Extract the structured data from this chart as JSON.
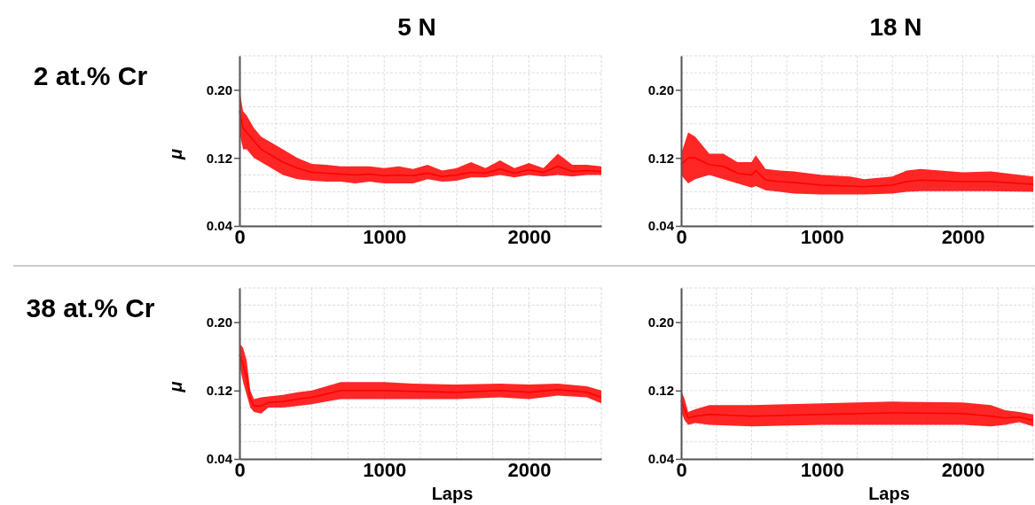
{
  "chart_data": [
    {
      "type": "line",
      "title": "5 N",
      "ylabel": "μ",
      "annotations": [
        "2 at.% Cr"
      ],
      "xlim": [
        0,
        2500
      ],
      "ylim": [
        0.04,
        0.24
      ],
      "xticks": [
        0,
        {
          "value": 250,
          "label": null
        },
        {
          "value": 500,
          "label": null
        },
        {
          "value": 750,
          "label": null
        },
        1000,
        {
          "value": 1250,
          "label": null
        },
        {
          "value": 1500,
          "label": null
        },
        {
          "value": 1750,
          "label": null
        },
        2000,
        {
          "value": 2250,
          "label": null
        }
      ],
      "yticks": [
        "0.04",
        {
          "value": 0.06,
          "label": null
        },
        {
          "value": 0.08,
          "label": null
        },
        {
          "value": 0.1,
          "label": null
        },
        {
          "value": 0.12,
          "label": "0.12"
        },
        {
          "value": 0.14,
          "label": null
        },
        {
          "value": 0.16,
          "label": null
        },
        {
          "value": 0.18,
          "label": null
        },
        {
          "value": 0.2,
          "label": "0.20"
        },
        {
          "value": 0.22,
          "label": null
        }
      ],
      "grid": true,
      "marker": "none",
      "series": [
        {
          "color": "#ff0000",
          "x": [
            0,
            25,
            50,
            100,
            150,
            200,
            300,
            400,
            500,
            600,
            700,
            800,
            900,
            1000,
            1100,
            1200,
            1300,
            1400,
            1500,
            1600,
            1700,
            1800,
            1900,
            2000,
            2100,
            2200,
            2300,
            2400,
            2500
          ],
          "values": [
            0.175,
            0.155,
            0.15,
            0.14,
            0.13,
            0.125,
            0.115,
            0.108,
            0.103,
            0.102,
            0.101,
            0.1,
            0.101,
            0.099,
            0.1,
            0.099,
            0.102,
            0.098,
            0.1,
            0.103,
            0.102,
            0.107,
            0.102,
            0.106,
            0.103,
            0.11,
            0.104,
            0.105,
            0.104
          ],
          "lower": [
            0.15,
            0.13,
            0.13,
            0.12,
            0.115,
            0.11,
            0.1,
            0.095,
            0.093,
            0.092,
            0.092,
            0.09,
            0.092,
            0.09,
            0.09,
            0.09,
            0.095,
            0.092,
            0.093,
            0.097,
            0.097,
            0.1,
            0.097,
            0.1,
            0.098,
            0.1,
            0.098,
            0.1,
            0.1
          ],
          "upper": [
            0.2,
            0.175,
            0.17,
            0.155,
            0.145,
            0.14,
            0.13,
            0.12,
            0.113,
            0.112,
            0.11,
            0.11,
            0.11,
            0.108,
            0.11,
            0.107,
            0.112,
            0.105,
            0.108,
            0.115,
            0.108,
            0.117,
            0.108,
            0.114,
            0.108,
            0.125,
            0.112,
            0.112,
            0.11
          ]
        }
      ]
    },
    {
      "type": "line",
      "title": "18 N",
      "xlim": [
        0,
        2500
      ],
      "ylim": [
        0.04,
        0.24
      ],
      "xticks": [
        0,
        {
          "value": 250,
          "label": null
        },
        {
          "value": 500,
          "label": null
        },
        {
          "value": 750,
          "label": null
        },
        1000,
        {
          "value": 1250,
          "label": null
        },
        {
          "value": 1500,
          "label": null
        },
        {
          "value": 1750,
          "label": null
        },
        2000,
        {
          "value": 2250,
          "label": null
        }
      ],
      "yticks": [
        "0.04",
        {
          "value": 0.06,
          "label": null
        },
        {
          "value": 0.08,
          "label": null
        },
        {
          "value": 0.1,
          "label": null
        },
        {
          "value": 0.12,
          "label": "0.12"
        },
        {
          "value": 0.14,
          "label": null
        },
        {
          "value": 0.16,
          "label": null
        },
        {
          "value": 0.18,
          "label": null
        },
        {
          "value": 0.2,
          "label": "0.20"
        },
        {
          "value": 0.22,
          "label": null
        }
      ],
      "grid": true,
      "marker": "none",
      "series": [
        {
          "color": "#ff0000",
          "x": [
            0,
            50,
            100,
            200,
            300,
            400,
            500,
            530,
            600,
            700,
            800,
            1000,
            1200,
            1300,
            1500,
            1600,
            1700,
            2000,
            2200,
            2500
          ],
          "values": [
            0.112,
            0.12,
            0.12,
            0.112,
            0.11,
            0.102,
            0.1,
            0.105,
            0.094,
            0.092,
            0.091,
            0.088,
            0.087,
            0.086,
            0.088,
            0.092,
            0.094,
            0.092,
            0.092,
            0.089
          ],
          "lower": [
            0.1,
            0.09,
            0.095,
            0.1,
            0.095,
            0.09,
            0.085,
            0.087,
            0.082,
            0.08,
            0.078,
            0.077,
            0.077,
            0.077,
            0.078,
            0.08,
            0.081,
            0.081,
            0.081,
            0.08
          ],
          "upper": [
            0.125,
            0.15,
            0.145,
            0.125,
            0.125,
            0.115,
            0.115,
            0.123,
            0.107,
            0.105,
            0.104,
            0.1,
            0.098,
            0.095,
            0.098,
            0.105,
            0.107,
            0.103,
            0.104,
            0.098
          ]
        }
      ]
    },
    {
      "type": "line",
      "xlabel": "Laps",
      "ylabel": "μ",
      "annotations": [
        "38 at.% Cr"
      ],
      "xlim": [
        0,
        2500
      ],
      "ylim": [
        0.04,
        0.24
      ],
      "xticks": [
        0,
        {
          "value": 250,
          "label": null
        },
        {
          "value": 500,
          "label": null
        },
        {
          "value": 750,
          "label": null
        },
        1000,
        {
          "value": 1250,
          "label": null
        },
        {
          "value": 1500,
          "label": null
        },
        {
          "value": 1750,
          "label": null
        },
        2000,
        {
          "value": 2250,
          "label": null
        }
      ],
      "yticks": [
        "0.04",
        {
          "value": 0.06,
          "label": null
        },
        {
          "value": 0.08,
          "label": null
        },
        {
          "value": 0.1,
          "label": null
        },
        {
          "value": 0.12,
          "label": "0.12"
        },
        {
          "value": 0.14,
          "label": null
        },
        {
          "value": 0.16,
          "label": null
        },
        {
          "value": 0.18,
          "label": null
        },
        {
          "value": 0.2,
          "label": "0.20"
        },
        {
          "value": 0.22,
          "label": null
        }
      ],
      "grid": true,
      "marker": "none",
      "series": [
        {
          "color": "#ff0000",
          "x": [
            0,
            25,
            50,
            75,
            100,
            150,
            200,
            300,
            400,
            500,
            600,
            700,
            800,
            1000,
            1200,
            1500,
            1800,
            2000,
            2200,
            2400,
            2500
          ],
          "values": [
            0.162,
            0.15,
            0.135,
            0.11,
            0.102,
            0.102,
            0.106,
            0.107,
            0.11,
            0.112,
            0.116,
            0.12,
            0.12,
            0.12,
            0.119,
            0.118,
            0.12,
            0.118,
            0.121,
            0.118,
            0.112
          ],
          "lower": [
            0.15,
            0.13,
            0.115,
            0.1,
            0.095,
            0.093,
            0.1,
            0.1,
            0.102,
            0.104,
            0.107,
            0.11,
            0.11,
            0.11,
            0.11,
            0.11,
            0.112,
            0.11,
            0.114,
            0.112,
            0.105
          ],
          "upper": [
            0.175,
            0.17,
            0.155,
            0.12,
            0.11,
            0.112,
            0.113,
            0.115,
            0.118,
            0.12,
            0.125,
            0.13,
            0.13,
            0.13,
            0.128,
            0.127,
            0.128,
            0.127,
            0.128,
            0.125,
            0.12
          ]
        }
      ]
    },
    {
      "type": "line",
      "xlabel": "Laps",
      "xlim": [
        0,
        2500
      ],
      "ylim": [
        0.04,
        0.24
      ],
      "xticks": [
        0,
        {
          "value": 250,
          "label": null
        },
        {
          "value": 500,
          "label": null
        },
        {
          "value": 750,
          "label": null
        },
        1000,
        {
          "value": 1250,
          "label": null
        },
        {
          "value": 1500,
          "label": null
        },
        {
          "value": 1750,
          "label": null
        },
        2000,
        {
          "value": 2250,
          "label": null
        }
      ],
      "yticks": [
        "0.04",
        {
          "value": 0.06,
          "label": null
        },
        {
          "value": 0.08,
          "label": null
        },
        {
          "value": 0.1,
          "label": null
        },
        {
          "value": 0.12,
          "label": "0.12"
        },
        {
          "value": 0.14,
          "label": null
        },
        {
          "value": 0.16,
          "label": null
        },
        {
          "value": 0.18,
          "label": null
        },
        {
          "value": 0.2,
          "label": "0.20"
        },
        {
          "value": 0.22,
          "label": null
        }
      ],
      "grid": true,
      "marker": "none",
      "series": [
        {
          "color": "#ff0000",
          "x": [
            0,
            25,
            50,
            100,
            200,
            500,
            1000,
            1500,
            2000,
            2200,
            2300,
            2400,
            2500
          ],
          "values": [
            0.108,
            0.098,
            0.088,
            0.09,
            0.092,
            0.09,
            0.092,
            0.094,
            0.093,
            0.09,
            0.088,
            0.089,
            0.085
          ],
          "lower": [
            0.095,
            0.085,
            0.08,
            0.082,
            0.08,
            0.078,
            0.08,
            0.08,
            0.08,
            0.078,
            0.08,
            0.083,
            0.078
          ],
          "upper": [
            0.12,
            0.11,
            0.095,
            0.098,
            0.103,
            0.103,
            0.105,
            0.107,
            0.106,
            0.103,
            0.097,
            0.095,
            0.092
          ]
        }
      ]
    }
  ]
}
